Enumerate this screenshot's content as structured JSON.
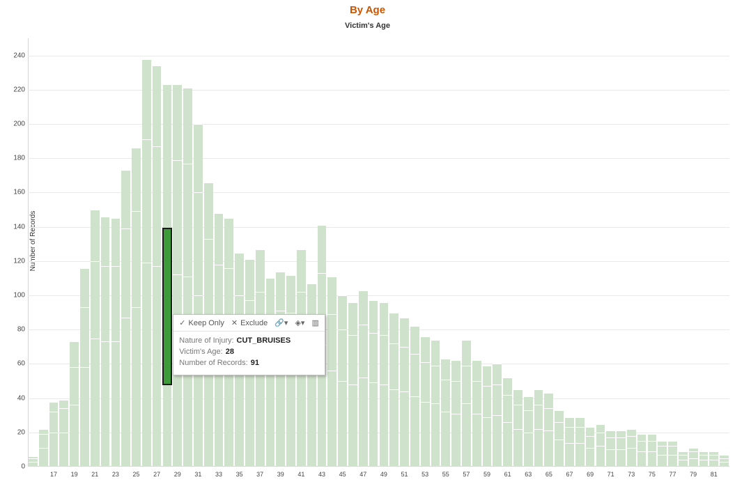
{
  "chart": {
    "type": "histogram-stacked",
    "title": "By Age",
    "title_color": "#cc5500",
    "title_fontsize": 15,
    "subtitle": "Victim's Age",
    "subtitle_fontsize": 11,
    "ylabel": "Number of Records",
    "ylabel_fontsize": 10,
    "ylim": [
      0,
      250
    ],
    "ytick_step": 20,
    "yticks": [
      0,
      20,
      40,
      60,
      80,
      100,
      120,
      140,
      160,
      180,
      200,
      220,
      240
    ],
    "grid_color": "#e9e9e9",
    "background_color": "#ffffff",
    "bar_color": "#cfe2cb",
    "bar_segment_divider": "#ffffff",
    "highlight_fill": "#3e9b3a",
    "highlight_outline": "#1a1a1a",
    "bar_gap_ratio": 0.14,
    "x_categories": [
      15,
      16,
      17,
      18,
      19,
      20,
      21,
      22,
      23,
      24,
      25,
      26,
      27,
      28,
      29,
      30,
      31,
      32,
      33,
      34,
      35,
      36,
      37,
      38,
      39,
      40,
      41,
      42,
      43,
      44,
      45,
      46,
      47,
      48,
      49,
      50,
      51,
      52,
      53,
      54,
      55,
      56,
      57,
      58,
      59,
      60,
      61,
      62,
      63,
      64,
      65,
      66,
      67,
      68,
      69,
      70,
      71,
      72,
      73,
      74,
      75,
      76,
      77,
      78,
      79,
      80,
      81,
      82
    ],
    "x_tick_labels_visible": [
      17,
      19,
      21,
      23,
      25,
      27,
      29,
      31,
      33,
      35,
      37,
      39,
      41,
      43,
      45,
      47,
      49,
      51,
      53,
      55,
      57,
      59,
      61,
      63,
      65,
      67,
      69,
      71,
      73,
      75,
      77,
      79,
      81
    ],
    "segments": {
      "15": [
        3,
        2,
        1
      ],
      "16": [
        11,
        8,
        3
      ],
      "17": [
        20,
        12,
        6
      ],
      "18": [
        20,
        14,
        5
      ],
      "19": [
        36,
        22,
        15
      ],
      "20": [
        58,
        35,
        23
      ],
      "21": [
        75,
        45,
        30
      ],
      "22": [
        73,
        44,
        29
      ],
      "23": [
        73,
        44,
        28
      ],
      "24": [
        87,
        52,
        34
      ],
      "25": [
        93,
        56,
        37
      ],
      "26": [
        119,
        72,
        47
      ],
      "27": [
        117,
        70,
        47
      ],
      "28": [
        48,
        91,
        84
      ],
      "29": [
        112,
        67,
        44
      ],
      "30": [
        111,
        66,
        44
      ],
      "31": [
        100,
        60,
        40
      ],
      "32": [
        83,
        50,
        33
      ],
      "33": [
        74,
        44,
        30
      ],
      "34": [
        73,
        43,
        29
      ],
      "35": [
        62,
        38,
        25
      ],
      "36": [
        61,
        36,
        24
      ],
      "37": [
        64,
        38,
        25
      ],
      "38": [
        55,
        33,
        22
      ],
      "39": [
        57,
        34,
        23
      ],
      "40": [
        56,
        34,
        22
      ],
      "41": [
        64,
        38,
        25
      ],
      "42": [
        54,
        32,
        21
      ],
      "43": [
        71,
        42,
        28
      ],
      "44": [
        56,
        33,
        22
      ],
      "45": [
        50,
        30,
        20
      ],
      "46": [
        48,
        29,
        19
      ],
      "47": [
        52,
        31,
        20
      ],
      "48": [
        49,
        29,
        19
      ],
      "49": [
        48,
        29,
        19
      ],
      "50": [
        45,
        27,
        18
      ],
      "51": [
        44,
        26,
        17
      ],
      "52": [
        41,
        25,
        16
      ],
      "53": [
        38,
        23,
        15
      ],
      "54": [
        37,
        22,
        15
      ],
      "55": [
        32,
        19,
        12
      ],
      "56": [
        31,
        19,
        12
      ],
      "57": [
        37,
        22,
        15
      ],
      "58": [
        31,
        19,
        12
      ],
      "59": [
        29,
        18,
        12
      ],
      "60": [
        30,
        18,
        12
      ],
      "61": [
        26,
        16,
        10
      ],
      "62": [
        22,
        14,
        9
      ],
      "63": [
        20,
        13,
        8
      ],
      "64": [
        22,
        14,
        9
      ],
      "65": [
        21,
        13,
        9
      ],
      "66": [
        16,
        10,
        7
      ],
      "67": [
        14,
        9,
        6
      ],
      "68": [
        14,
        9,
        6
      ],
      "69": [
        11,
        7,
        5
      ],
      "70": [
        12,
        8,
        5
      ],
      "71": [
        10,
        7,
        4
      ],
      "72": [
        10,
        7,
        4
      ],
      "73": [
        11,
        7,
        4
      ],
      "74": [
        9,
        6,
        4
      ],
      "75": [
        9,
        6,
        4
      ],
      "76": [
        7,
        5,
        3
      ],
      "77": [
        7,
        5,
        3
      ],
      "78": [
        4,
        3,
        2
      ],
      "79": [
        5,
        4,
        2
      ],
      "80": [
        4,
        3,
        2
      ],
      "81": [
        4,
        3,
        2
      ],
      "82": [
        3,
        2,
        2
      ]
    },
    "highlight": {
      "category": 28,
      "segment_index": 1
    }
  },
  "tooltip": {
    "toolbar": {
      "keep_only": "Keep Only",
      "exclude": "Exclude"
    },
    "rows": [
      {
        "k": "Nature of Injury:",
        "v": "CUT_BRUISES"
      },
      {
        "k": "Victim's Age:",
        "v": "28"
      },
      {
        "k": "Number of Records:",
        "v": "91"
      }
    ],
    "position": {
      "attach_category": 28
    }
  }
}
